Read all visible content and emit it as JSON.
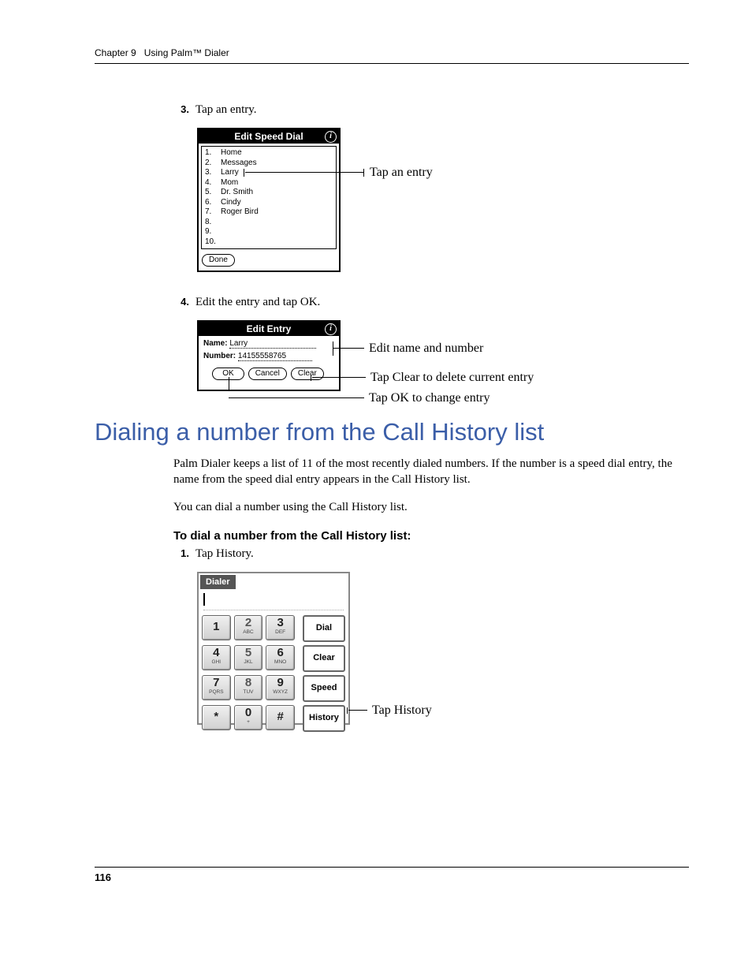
{
  "header": {
    "chapter": "Chapter 9",
    "title": "Using Palm™ Dialer"
  },
  "steps": {
    "s3": {
      "num": "3.",
      "text": "Tap an entry."
    },
    "s4": {
      "num": "4.",
      "text": "Edit the entry and tap OK."
    },
    "s1b": {
      "num": "1.",
      "text": "Tap History."
    }
  },
  "fig1": {
    "title": "Edit Speed Dial",
    "entries": [
      "Home",
      "Messages",
      "Larry",
      "Mom",
      "Dr. Smith",
      "Cindy",
      "Roger Bird"
    ],
    "nums": [
      "1.",
      "2.",
      "3.",
      "4.",
      "5.",
      "6.",
      "7.",
      "8.",
      "9.",
      "10."
    ],
    "done": "Done",
    "callout": "Tap an entry"
  },
  "fig2": {
    "title": "Edit Entry",
    "name_label": "Name:",
    "name_val": "Larry",
    "number_label": "Number:",
    "number_val": "14155558765",
    "btns": {
      "ok": "OK",
      "cancel": "Cancel",
      "clear": "Clear"
    },
    "callouts": {
      "a": "Edit name and number",
      "b": "Tap Clear to delete current entry",
      "c": "Tap OK to change entry"
    }
  },
  "section": {
    "heading": "Dialing a number from the Call History list",
    "p1": "Palm Dialer keeps a list of 11 of the most recently dialed numbers. If the number is a speed dial entry, the name from the speed dial entry appears in the Call History list.",
    "p2": "You can dial a number using the Call History list.",
    "sub": "To dial a number from the Call History list:"
  },
  "dialer": {
    "tab": "Dialer",
    "keys": [
      [
        {
          "n": "1",
          "s": "",
          "dark": true
        },
        {
          "n": "2",
          "s": "ABC"
        },
        {
          "n": "3",
          "s": "DEF",
          "dark": true
        }
      ],
      [
        {
          "n": "4",
          "s": "GHI",
          "dark": true
        },
        {
          "n": "5",
          "s": "JKL"
        },
        {
          "n": "6",
          "s": "MNO",
          "dark": true
        }
      ],
      [
        {
          "n": "7",
          "s": "PQRS",
          "dark": true
        },
        {
          "n": "8",
          "s": "TUV"
        },
        {
          "n": "9",
          "s": "WXYZ",
          "dark": true
        }
      ],
      [
        {
          "n": "*",
          "s": "",
          "dark": true
        },
        {
          "n": "0",
          "s": "+",
          "dark": true
        },
        {
          "n": "#",
          "s": "",
          "dark": true
        }
      ]
    ],
    "side": [
      "Dial",
      "Clear",
      "Speed",
      "History"
    ],
    "callout": "Tap History"
  },
  "footer": {
    "page": "116"
  }
}
